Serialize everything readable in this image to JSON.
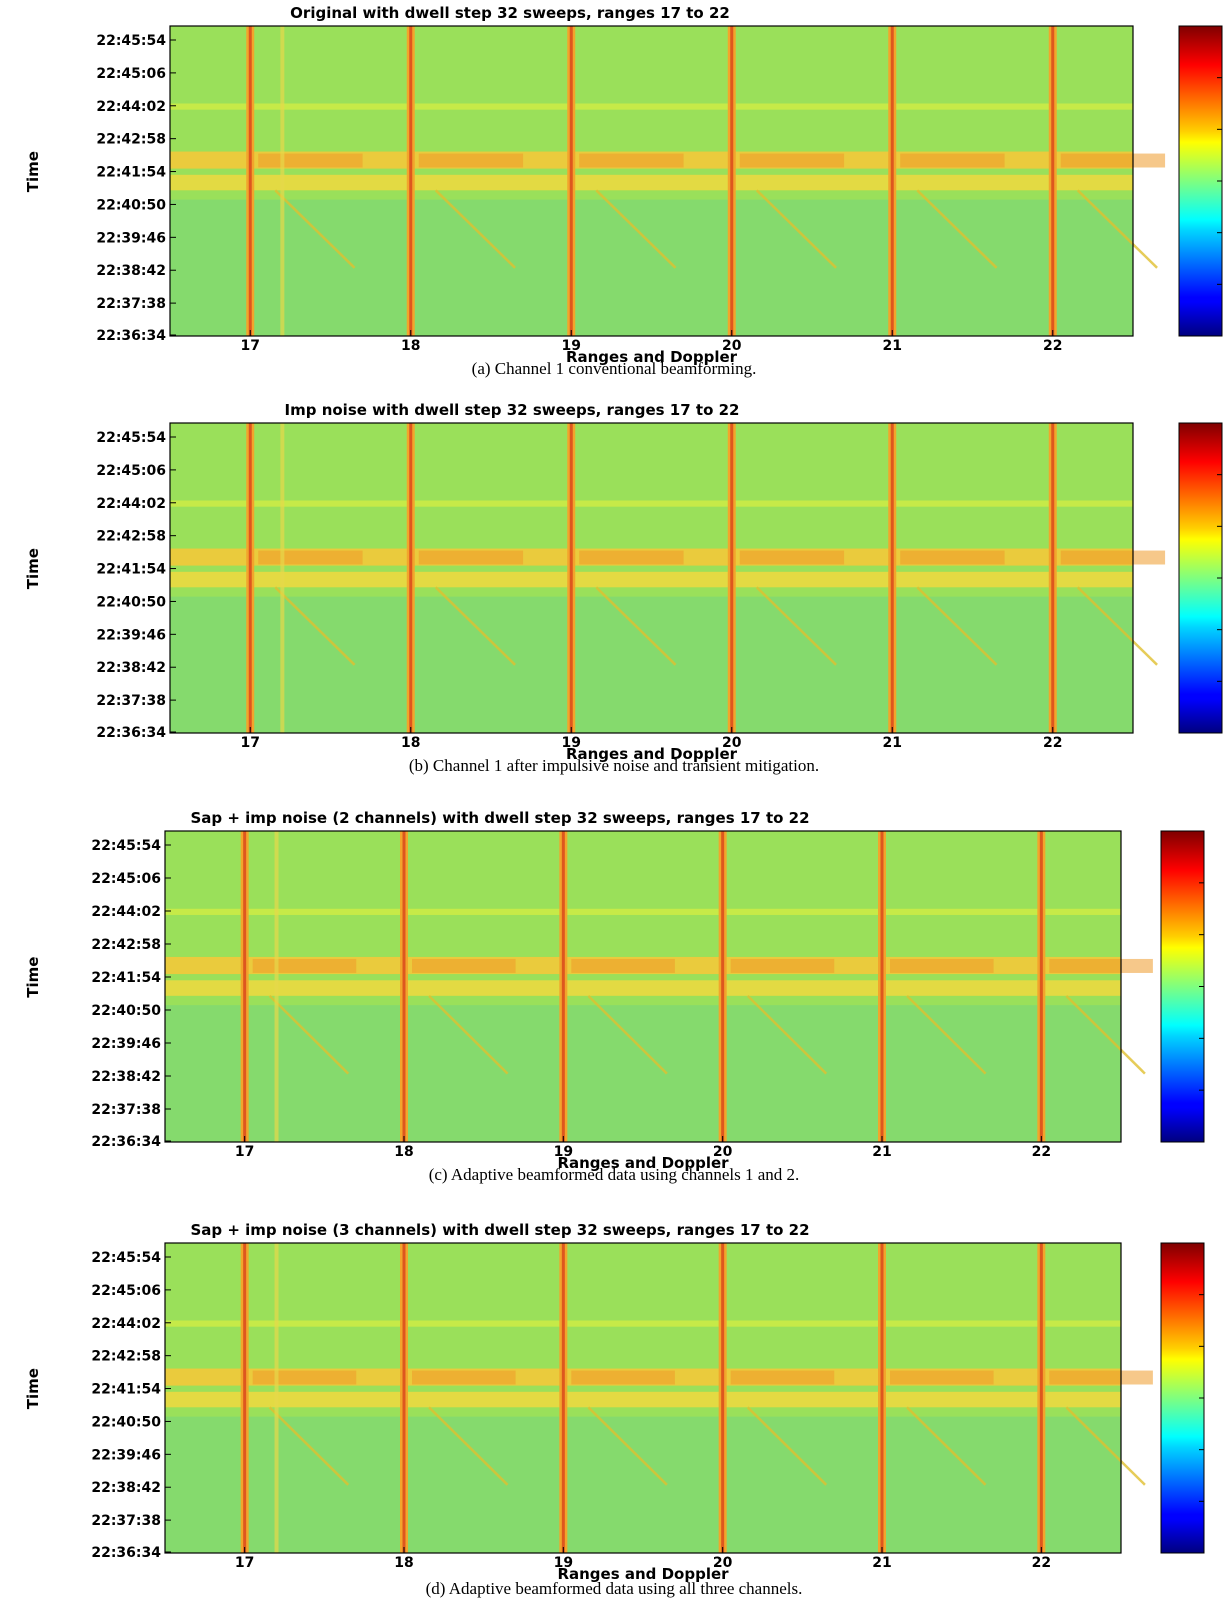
{
  "chart_data": [
    {
      "type": "heatmap",
      "title": "Original with dwell step 32 sweeps, ranges 17 to 22",
      "caption": "(a) Channel 1 conventional beamforming.",
      "xlabel": "Ranges and Doppler",
      "ylabel": "Time",
      "xticks": [
        "17",
        "18",
        "19",
        "20",
        "21",
        "22"
      ],
      "yticks": [
        "22:45:54",
        "22:45:06",
        "22:44:02",
        "22:42:58",
        "22:41:54",
        "22:40:50",
        "22:39:46",
        "22:38:42",
        "22:37:38",
        "22:36:34"
      ],
      "colormap": "jet"
    },
    {
      "type": "heatmap",
      "title": "Imp noise with dwell step 32 sweeps, ranges 17 to 22",
      "caption": "(b) Channel 1 after impulsive noise and transient mitigation.",
      "xlabel": "Ranges and Doppler",
      "ylabel": "Time",
      "xticks": [
        "17",
        "18",
        "19",
        "20",
        "21",
        "22"
      ],
      "yticks": [
        "22:45:54",
        "22:45:06",
        "22:44:02",
        "22:42:58",
        "22:41:54",
        "22:40:50",
        "22:39:46",
        "22:38:42",
        "22:37:38",
        "22:36:34"
      ],
      "colormap": "jet"
    },
    {
      "type": "heatmap",
      "title": "Sap + imp noise (2 channels)  with dwell step 32 sweeps, ranges 17 to 22",
      "caption": "(c) Adaptive beamformed data using channels 1 and 2.",
      "xlabel": "Ranges and Doppler",
      "ylabel": "Time",
      "xticks": [
        "17",
        "18",
        "19",
        "20",
        "21",
        "22"
      ],
      "yticks": [
        "22:45:54",
        "22:45:06",
        "22:44:02",
        "22:42:58",
        "22:41:54",
        "22:40:50",
        "22:39:46",
        "22:38:42",
        "22:37:38",
        "22:36:34"
      ],
      "colormap": "jet"
    },
    {
      "type": "heatmap",
      "title": "Sap + imp noise (3 channels) with dwell step 32 sweeps, ranges 17 to 22",
      "caption": "(d) Adaptive beamformed data using all three channels.",
      "xlabel": "Ranges and Doppler",
      "ylabel": "Time",
      "xticks": [
        "17",
        "18",
        "19",
        "20",
        "21",
        "22"
      ],
      "yticks": [
        "22:45:54",
        "22:45:06",
        "22:44:02",
        "22:42:58",
        "22:41:54",
        "22:40:50",
        "22:39:46",
        "22:38:42",
        "22:37:38",
        "22:36:34"
      ],
      "colormap": "jet"
    }
  ]
}
